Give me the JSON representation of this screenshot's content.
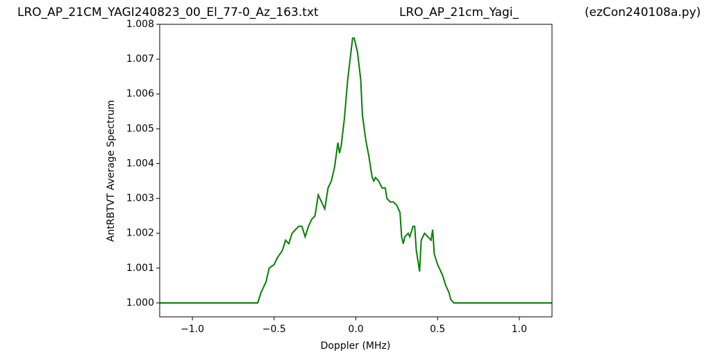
{
  "chart_data": {
    "type": "line",
    "title_left": "LRO_AP_21CM_YAGI240823_00_El_77-0_Az_163.txt",
    "title_center": "LRO_AP_21cm_Yagi_",
    "title_right": "(ezCon240108a.py)",
    "xlabel": "Doppler (MHz)",
    "ylabel": "AntRBTVT Average Spectrum",
    "xlim": [
      -1.2,
      1.2
    ],
    "ylim": [
      0.9996,
      1.008
    ],
    "xticks": [
      {
        "value": -1.0,
        "label": "−1.0"
      },
      {
        "value": -0.5,
        "label": "−0.5"
      },
      {
        "value": 0,
        "label": "0.0"
      },
      {
        "value": 0.5,
        "label": "0.5"
      },
      {
        "value": 1.0,
        "label": "1.0"
      }
    ],
    "yticks": [
      {
        "value": 1.0,
        "label": "1.000"
      },
      {
        "value": 1.001,
        "label": "1.001"
      },
      {
        "value": 1.002,
        "label": "1.002"
      },
      {
        "value": 1.003,
        "label": "1.003"
      },
      {
        "value": 1.004,
        "label": "1.004"
      },
      {
        "value": 1.005,
        "label": "1.005"
      },
      {
        "value": 1.006,
        "label": "1.006"
      },
      {
        "value": 1.007,
        "label": "1.007"
      },
      {
        "value": 1.008,
        "label": "1.008"
      }
    ],
    "series": [
      {
        "color": "#008000",
        "x": [
          -1.2,
          -0.6,
          -0.58,
          -0.55,
          -0.53,
          -0.5,
          -0.48,
          -0.45,
          -0.43,
          -0.41,
          -0.39,
          -0.37,
          -0.35,
          -0.33,
          -0.31,
          -0.29,
          -0.27,
          -0.25,
          -0.23,
          -0.21,
          -0.19,
          -0.17,
          -0.15,
          -0.13,
          -0.11,
          -0.1,
          -0.09,
          -0.07,
          -0.05,
          -0.03,
          -0.02,
          -0.01,
          0.01,
          0.03,
          0.04,
          0.06,
          0.08,
          0.1,
          0.11,
          0.12,
          0.14,
          0.16,
          0.18,
          0.19,
          0.21,
          0.23,
          0.25,
          0.27,
          0.28,
          0.29,
          0.3,
          0.32,
          0.33,
          0.35,
          0.36,
          0.37,
          0.39,
          0.4,
          0.42,
          0.44,
          0.46,
          0.47,
          0.48,
          0.5,
          0.53,
          0.55,
          0.57,
          0.58,
          0.6,
          1.2
        ],
        "values": [
          1.0,
          1.0,
          1.0003,
          1.0006,
          1.001,
          1.0011,
          1.0013,
          1.0015,
          1.0018,
          1.0017,
          1.002,
          1.0021,
          1.0022,
          1.0022,
          1.0019,
          1.0022,
          1.0024,
          1.0025,
          1.0031,
          1.0029,
          1.0027,
          1.0033,
          1.0035,
          1.0039,
          1.0046,
          1.0043,
          1.0045,
          1.0053,
          1.0064,
          1.0072,
          1.0076,
          1.0076,
          1.0072,
          1.0064,
          1.0054,
          1.0047,
          1.0042,
          1.0036,
          1.0035,
          1.0036,
          1.0035,
          1.0033,
          1.0033,
          1.003,
          1.0029,
          1.0029,
          1.0028,
          1.0026,
          1.0019,
          1.0017,
          1.0019,
          1.002,
          1.0019,
          1.0022,
          1.0022,
          1.0015,
          1.0009,
          1.0018,
          1.002,
          1.0019,
          1.0018,
          1.0021,
          1.0014,
          1.0011,
          1.0008,
          1.0005,
          1.0003,
          1.0001,
          1.0,
          1.0
        ]
      }
    ]
  }
}
